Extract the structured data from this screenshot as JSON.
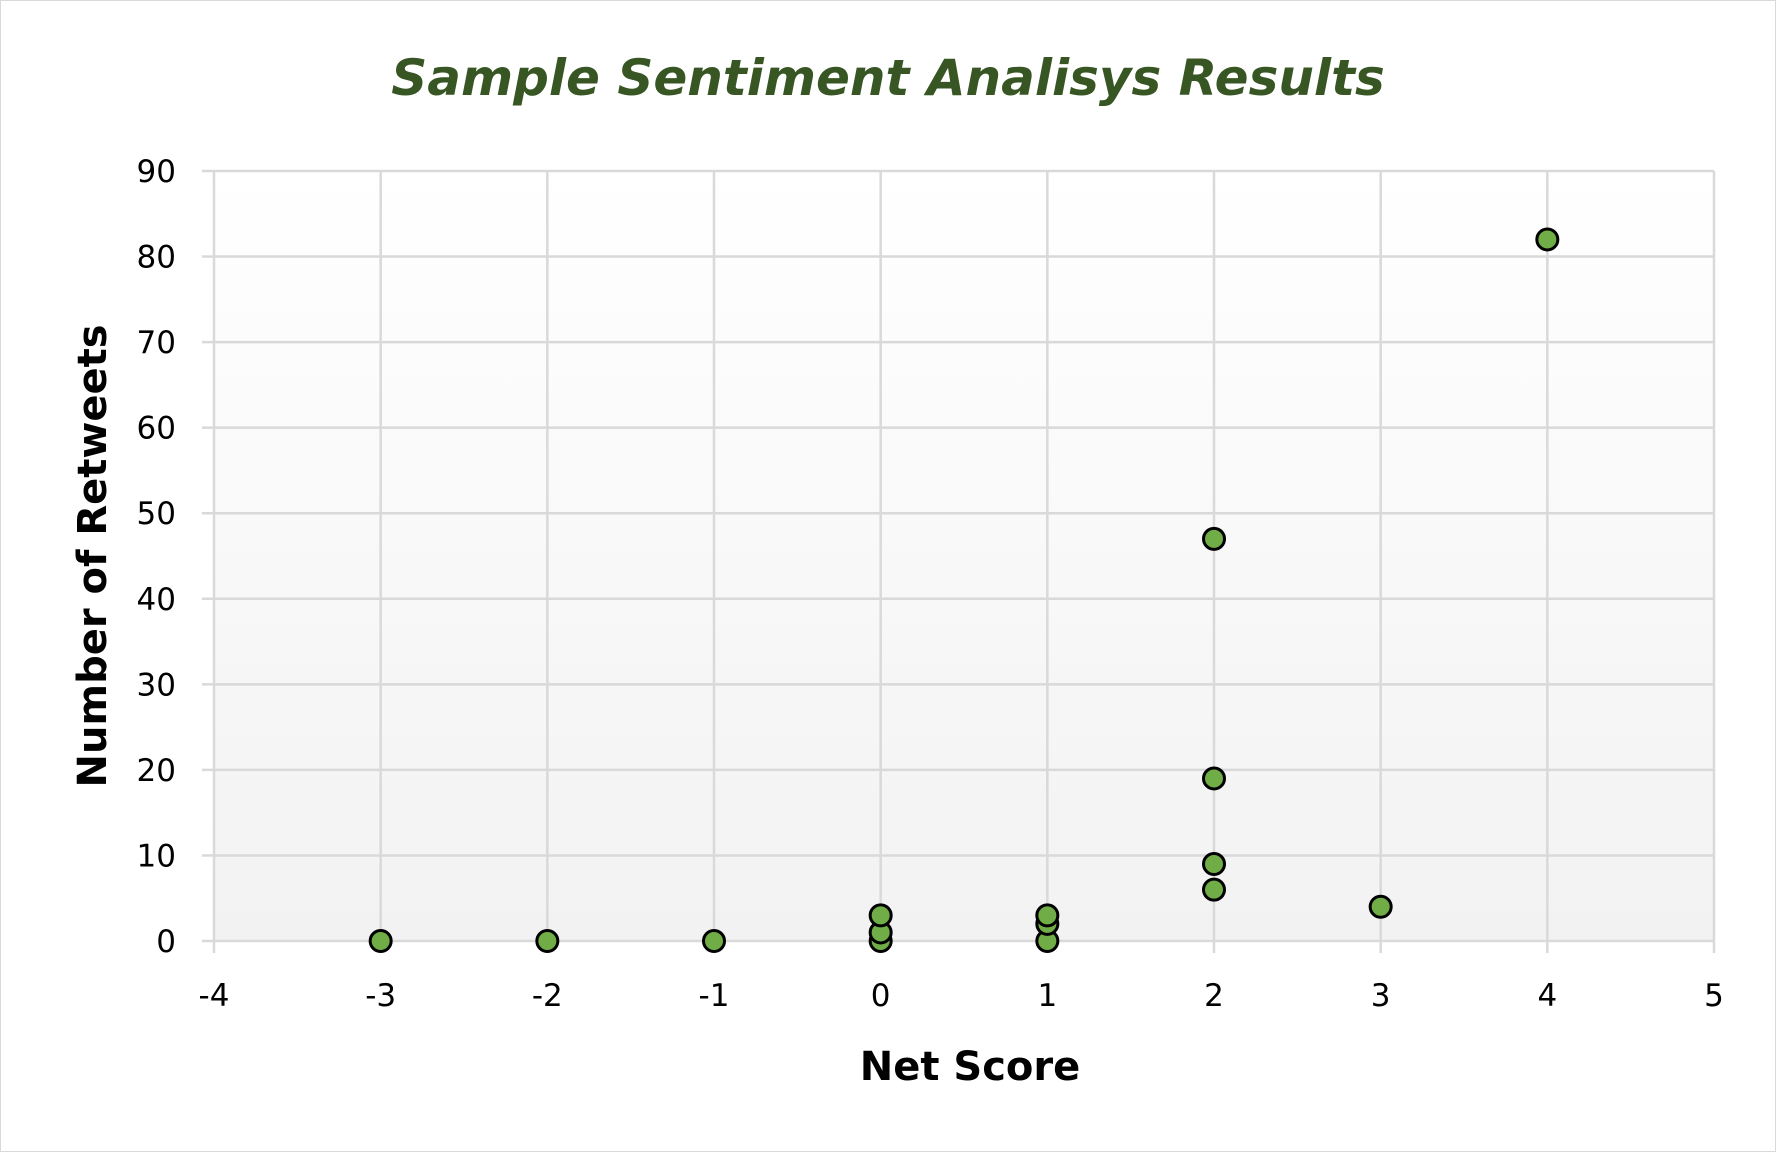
{
  "chart_data": {
    "type": "scatter",
    "title": "Sample Sentiment Analisys Results",
    "xlabel": "Net Score",
    "ylabel": "Number of Retweets",
    "xlim": [
      -4,
      5
    ],
    "ylim": [
      0,
      90
    ],
    "x_ticks": [
      -4,
      -3,
      -2,
      -1,
      0,
      1,
      2,
      3,
      4,
      5
    ],
    "y_ticks": [
      0,
      10,
      20,
      30,
      40,
      50,
      60,
      70,
      80,
      90
    ],
    "grid": true,
    "legend": "none",
    "series": [
      {
        "name": "Number of Retweets",
        "color": "#70ad47",
        "points": [
          {
            "x": -3,
            "y": 0
          },
          {
            "x": -2,
            "y": 0
          },
          {
            "x": -1,
            "y": 0
          },
          {
            "x": 0,
            "y": 0
          },
          {
            "x": 0,
            "y": 1
          },
          {
            "x": 0,
            "y": 3
          },
          {
            "x": 1,
            "y": 0
          },
          {
            "x": 1,
            "y": 2
          },
          {
            "x": 1,
            "y": 3
          },
          {
            "x": 2,
            "y": 6
          },
          {
            "x": 2,
            "y": 9
          },
          {
            "x": 2,
            "y": 19
          },
          {
            "x": 2,
            "y": 47
          },
          {
            "x": 3,
            "y": 4
          },
          {
            "x": 4,
            "y": 82
          }
        ]
      }
    ]
  }
}
